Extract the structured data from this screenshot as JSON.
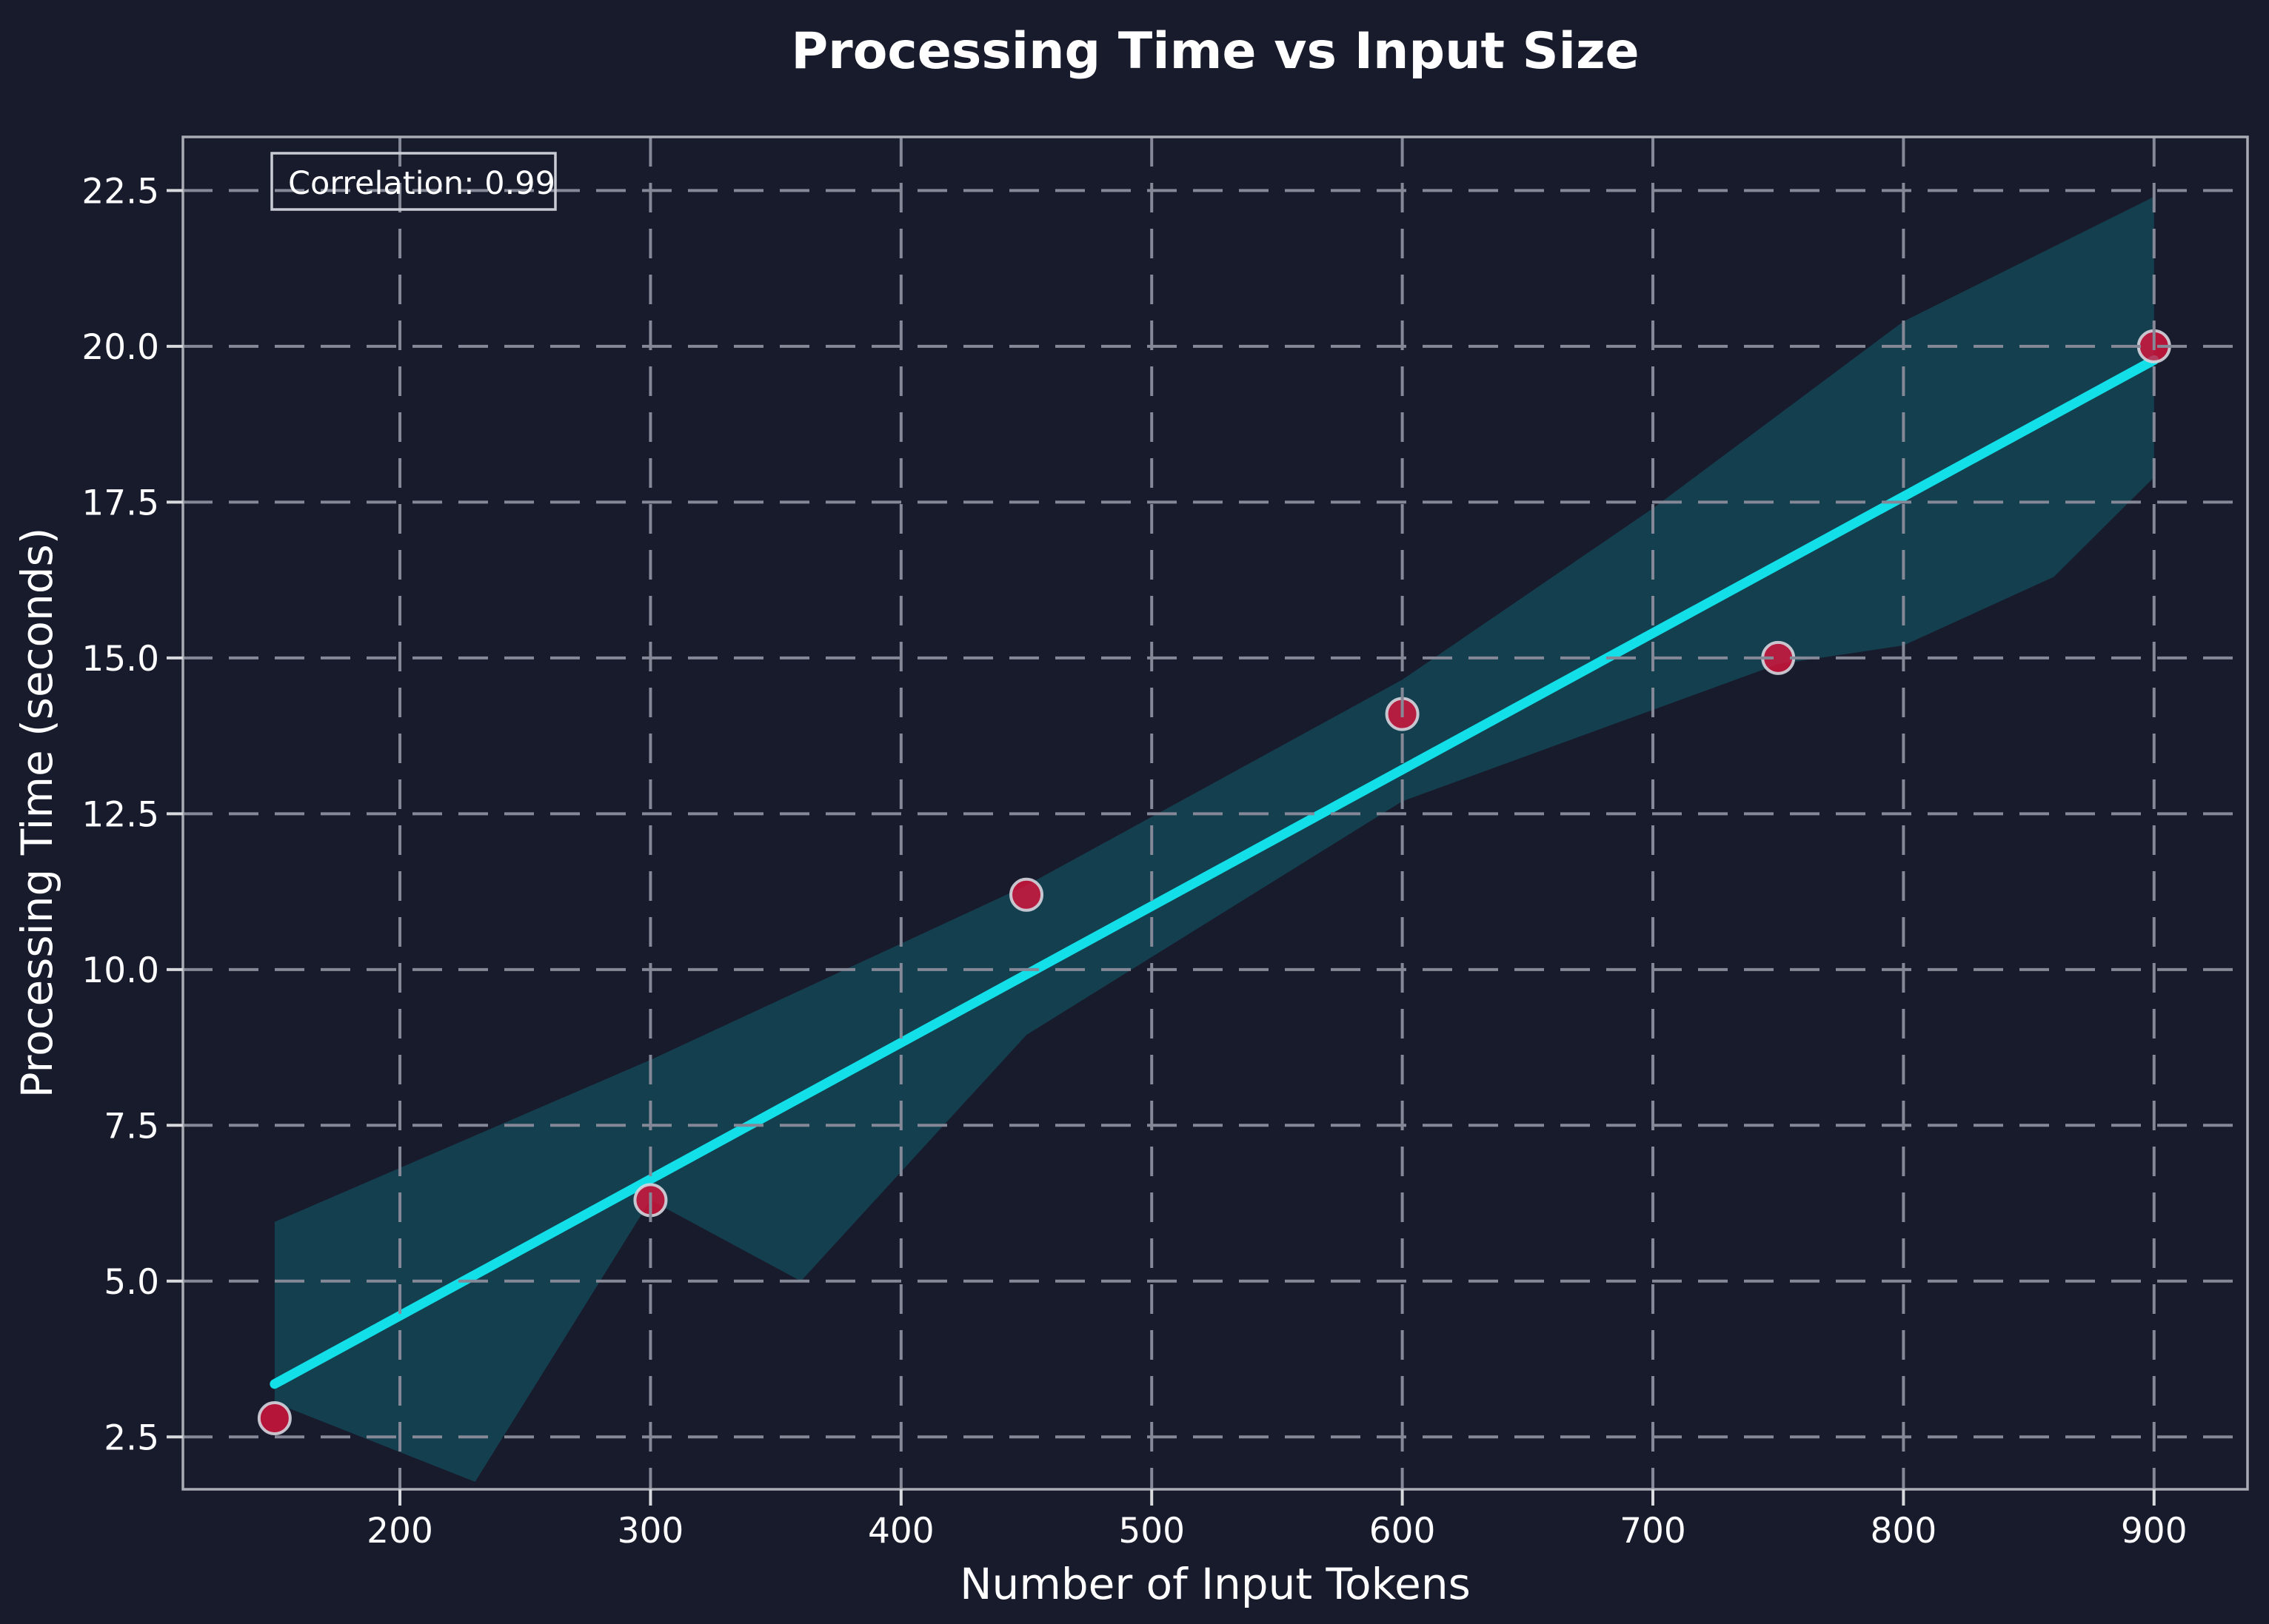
{
  "chart_data": {
    "type": "scatter",
    "title": "Processing Time vs Input Size",
    "xlabel": "Number of Input Tokens",
    "ylabel": "Processing Time (seconds)",
    "annotation": "Correlation: 0.99",
    "x": [
      150,
      300,
      450,
      600,
      750,
      900
    ],
    "y": [
      2.8,
      6.3,
      11.2,
      14.1,
      15.0,
      20.0
    ],
    "regression_line": {
      "x1": 150,
      "y1": 3.35,
      "x2": 900,
      "y2": 19.78
    },
    "confidence_band": {
      "upper": [
        [
          150,
          5.95
        ],
        [
          300,
          8.55
        ],
        [
          450,
          11.35
        ],
        [
          600,
          14.65
        ],
        [
          700,
          17.4
        ],
        [
          800,
          20.4
        ],
        [
          900,
          22.4
        ]
      ],
      "lower": [
        [
          150,
          3.05
        ],
        [
          230,
          1.78
        ],
        [
          300,
          6.3
        ],
        [
          360,
          5.0
        ],
        [
          450,
          8.95
        ],
        [
          600,
          12.7
        ],
        [
          750,
          14.9
        ],
        [
          800,
          15.2
        ],
        [
          860,
          16.3
        ],
        [
          900,
          17.9
        ]
      ]
    },
    "xticks": [
      200,
      300,
      400,
      500,
      600,
      700,
      800,
      900
    ],
    "yticks": [
      2.5,
      5.0,
      7.5,
      10.0,
      12.5,
      15.0,
      17.5,
      20.0,
      22.5
    ],
    "xlim": [
      113.4,
      937.3
    ],
    "ylim": [
      1.66,
      23.36
    ],
    "grid": true,
    "legend": false
  },
  "colors": {
    "background": "#181b2c",
    "grid": "#858897",
    "spine": "#a9abb5",
    "text": "#ffffff",
    "tick_mark": "#d8dade",
    "regression_line": "#12dfe8",
    "confidence_band": "rgba(5,212,219,0.2)",
    "point_fill": "rgba(220,20,60,0.8)",
    "point_edge": "rgba(211,214,222,0.9)",
    "annotation_border": "#c9cbd4"
  }
}
